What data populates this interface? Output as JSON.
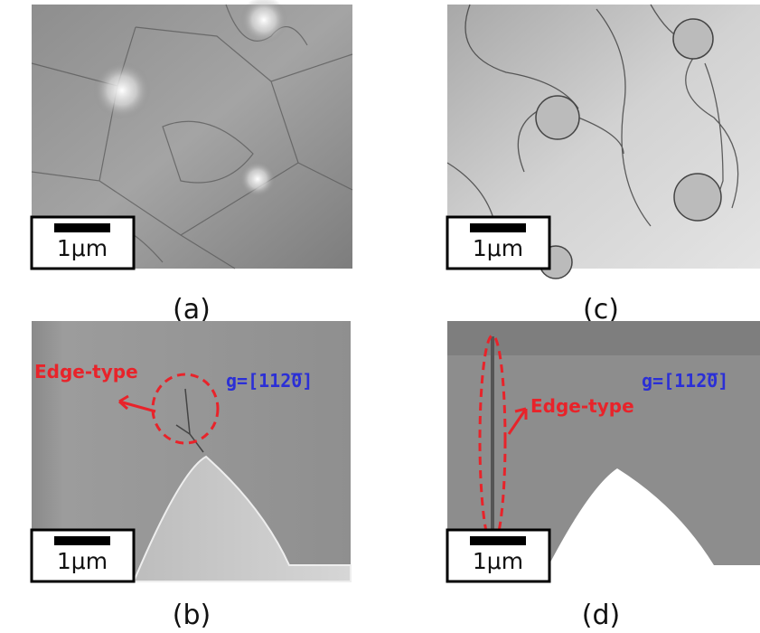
{
  "panels": [
    {
      "caption": "(a)",
      "scale_bar": "1μm"
    },
    {
      "caption": "(c)",
      "scale_bar": "1μm"
    },
    {
      "caption": "(b)",
      "scale_bar": "1μm",
      "annotations": [
        "Edge-type",
        "g=[112̅0]"
      ]
    },
    {
      "caption": "(d)",
      "scale_bar": "1μm",
      "annotations": [
        "Edge-type",
        "g=[112̅0]"
      ]
    }
  ]
}
